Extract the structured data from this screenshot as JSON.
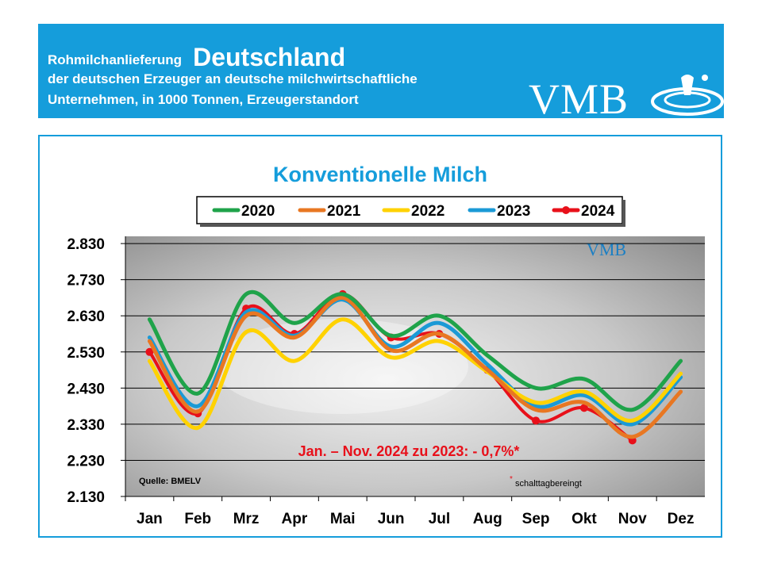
{
  "header": {
    "line1_prefix": "Rohmilchanlieferung",
    "line1_main": "Deutschland",
    "line2": "der deutschen Erzeuger an deutsche milchwirtschaftliche",
    "line3": "Unternehmen, in 1000 Tonnen, Erzeugerstandort",
    "logo": "VMB"
  },
  "colors": {
    "brand": "#159ddb",
    "s2020": "#1fa34a",
    "s2021": "#e87722",
    "s2022": "#ffd200",
    "s2023": "#1b9ad6",
    "s2024": "#e8101a"
  },
  "chart_data": {
    "type": "line",
    "title": "Konventionelle Milch",
    "categories": [
      "Jan",
      "Feb",
      "Mrz",
      "Apr",
      "Mai",
      "Jun",
      "Jul",
      "Aug",
      "Sep",
      "Okt",
      "Nov",
      "Dez"
    ],
    "ylim": [
      2130,
      2850
    ],
    "yticks": [
      "2.830",
      "2.730",
      "2.630",
      "2.530",
      "2.430",
      "2.330",
      "2.230",
      "2.130"
    ],
    "ytick_values": [
      2830,
      2730,
      2630,
      2530,
      2430,
      2330,
      2230,
      2130
    ],
    "grid": true,
    "legend_position": "top",
    "series": [
      {
        "name": "2020",
        "values": [
          2620,
          2415,
          2690,
          2610,
          2690,
          2575,
          2630,
          2520,
          2430,
          2455,
          2370,
          2505
        ]
      },
      {
        "name": "2021",
        "values": [
          2560,
          2365,
          2630,
          2570,
          2680,
          2535,
          2580,
          2480,
          2370,
          2390,
          2295,
          2420
        ]
      },
      {
        "name": "2022",
        "values": [
          2505,
          2320,
          2585,
          2505,
          2620,
          2515,
          2560,
          2475,
          2390,
          2420,
          2340,
          2470
        ]
      },
      {
        "name": "2023",
        "values": [
          2570,
          2380,
          2640,
          2575,
          2675,
          2545,
          2610,
          2495,
          2380,
          2410,
          2330,
          2460
        ]
      },
      {
        "name": "2024",
        "values": [
          2530,
          2360,
          2650,
          2580,
          2690,
          2570,
          2580,
          2480,
          2340,
          2375,
          2285,
          null
        ]
      }
    ],
    "annotation": "Jan. – Nov. 2024 zu 2023: - 0,7%*",
    "source": "Quelle:  BMELV",
    "footnote_star": "*",
    "footnote": "schalttagbereingt",
    "watermark": "VMB"
  }
}
